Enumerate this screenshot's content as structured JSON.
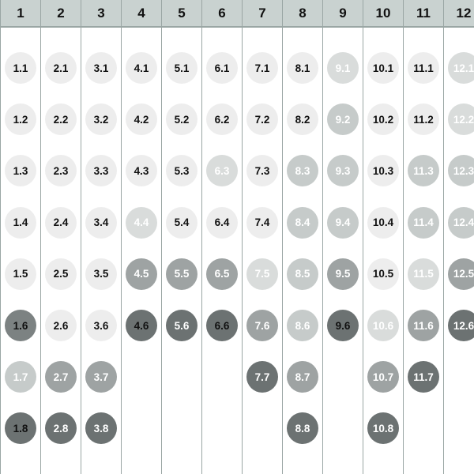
{
  "columns": [
    {
      "label": "1",
      "cells": [
        {
          "label": "1.1",
          "shade": 0
        },
        {
          "label": "1.2",
          "shade": 0
        },
        {
          "label": "1.3",
          "shade": 0
        },
        {
          "label": "1.4",
          "shade": 0
        },
        {
          "label": "1.5",
          "shade": 0
        },
        {
          "label": "1.6",
          "shade": 4
        },
        {
          "label": "1.7",
          "shade": 2
        },
        {
          "label": "1.8",
          "shade": 5
        }
      ]
    },
    {
      "label": "2",
      "cells": [
        {
          "label": "2.1",
          "shade": 0
        },
        {
          "label": "2.2",
          "shade": 0
        },
        {
          "label": "2.3",
          "shade": 0
        },
        {
          "label": "2.4",
          "shade": 0
        },
        {
          "label": "2.5",
          "shade": 0
        },
        {
          "label": "2.6",
          "shade": 0
        },
        {
          "label": "2.7",
          "shade": 3
        },
        {
          "label": "2.8",
          "shade": 6
        }
      ]
    },
    {
      "label": "3",
      "cells": [
        {
          "label": "3.1",
          "shade": 0
        },
        {
          "label": "3.2",
          "shade": 0
        },
        {
          "label": "3.3",
          "shade": 0
        },
        {
          "label": "3.4",
          "shade": 0
        },
        {
          "label": "3.5",
          "shade": 0
        },
        {
          "label": "3.6",
          "shade": 0
        },
        {
          "label": "3.7",
          "shade": 3
        },
        {
          "label": "3.8",
          "shade": 6
        }
      ]
    },
    {
      "label": "4",
      "cells": [
        {
          "label": "4.1",
          "shade": 0
        },
        {
          "label": "4.2",
          "shade": 0
        },
        {
          "label": "4.3",
          "shade": 0
        },
        {
          "label": "4.4",
          "shade": 1
        },
        {
          "label": "4.5",
          "shade": 3
        },
        {
          "label": "4.6",
          "shade": 5
        }
      ]
    },
    {
      "label": "5",
      "cells": [
        {
          "label": "5.1",
          "shade": 0
        },
        {
          "label": "5.2",
          "shade": 0
        },
        {
          "label": "5.3",
          "shade": 0
        },
        {
          "label": "5.4",
          "shade": 0
        },
        {
          "label": "5.5",
          "shade": 3
        },
        {
          "label": "5.6",
          "shade": 6
        }
      ]
    },
    {
      "label": "6",
      "cells": [
        {
          "label": "6.1",
          "shade": 0
        },
        {
          "label": "6.2",
          "shade": 0
        },
        {
          "label": "6.3",
          "shade": 1
        },
        {
          "label": "6.4",
          "shade": 0
        },
        {
          "label": "6.5",
          "shade": 3
        },
        {
          "label": "6.6",
          "shade": 5
        }
      ]
    },
    {
      "label": "7",
      "cells": [
        {
          "label": "7.1",
          "shade": 0
        },
        {
          "label": "7.2",
          "shade": 0
        },
        {
          "label": "7.3",
          "shade": 0
        },
        {
          "label": "7.4",
          "shade": 0
        },
        {
          "label": "7.5",
          "shade": 1
        },
        {
          "label": "7.6",
          "shade": 3
        },
        {
          "label": "7.7",
          "shade": 6
        }
      ]
    },
    {
      "label": "8",
      "cells": [
        {
          "label": "8.1",
          "shade": 0
        },
        {
          "label": "8.2",
          "shade": 0
        },
        {
          "label": "8.3",
          "shade": 2
        },
        {
          "label": "8.4",
          "shade": 2
        },
        {
          "label": "8.5",
          "shade": 2
        },
        {
          "label": "8.6",
          "shade": 2
        },
        {
          "label": "8.7",
          "shade": 3
        },
        {
          "label": "8.8",
          "shade": 6
        }
      ]
    },
    {
      "label": "9",
      "cells": [
        {
          "label": "9.1",
          "shade": 1
        },
        {
          "label": "9.2",
          "shade": 2
        },
        {
          "label": "9.3",
          "shade": 2
        },
        {
          "label": "9.4",
          "shade": 2
        },
        {
          "label": "9.5",
          "shade": 3
        },
        {
          "label": "9.6",
          "shade": 5
        }
      ]
    },
    {
      "label": "10",
      "cells": [
        {
          "label": "10.1",
          "shade": 0
        },
        {
          "label": "10.2",
          "shade": 0
        },
        {
          "label": "10.3",
          "shade": 0
        },
        {
          "label": "10.4",
          "shade": 0
        },
        {
          "label": "10.5",
          "shade": 0
        },
        {
          "label": "10.6",
          "shade": 1
        },
        {
          "label": "10.7",
          "shade": 3
        },
        {
          "label": "10.8",
          "shade": 6
        }
      ]
    },
    {
      "label": "11",
      "cells": [
        {
          "label": "11.1",
          "shade": 0
        },
        {
          "label": "11.2",
          "shade": 0
        },
        {
          "label": "11.3",
          "shade": 2
        },
        {
          "label": "11.4",
          "shade": 2
        },
        {
          "label": "11.5",
          "shade": 1
        },
        {
          "label": "11.6",
          "shade": 3
        },
        {
          "label": "11.7",
          "shade": 6
        }
      ]
    },
    {
      "label": "12",
      "cells": [
        {
          "label": "12.1",
          "shade": 1
        },
        {
          "label": "12.2",
          "shade": 1
        },
        {
          "label": "12.3",
          "shade": 2
        },
        {
          "label": "12.4",
          "shade": 2
        },
        {
          "label": "12.5",
          "shade": 3
        },
        {
          "label": "12.6",
          "shade": 6
        }
      ]
    }
  ]
}
